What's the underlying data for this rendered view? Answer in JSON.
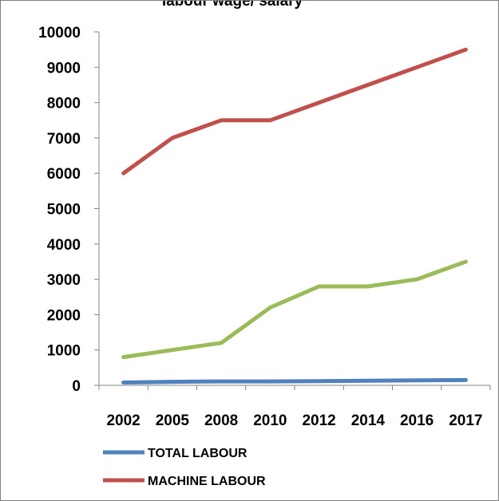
{
  "chart_data": {
    "type": "line",
    "title": "labour wage/ salary",
    "xlabel": "",
    "ylabel": "",
    "categories": [
      "2002",
      "2005",
      "2008",
      "2010",
      "2012",
      "2014",
      "2016",
      "2017"
    ],
    "ylim": [
      0,
      10000
    ],
    "yticks": [
      "0",
      "1000",
      "2000",
      "3000",
      "4000",
      "5000",
      "6000",
      "7000",
      "8000",
      "9000",
      "10000"
    ],
    "grid": false,
    "legend_position": "bottom",
    "series": [
      {
        "name": "TOTAL LABOUR",
        "color": "#4f81bd",
        "values": [
          80,
          100,
          110,
          110,
          120,
          130,
          140,
          150
        ]
      },
      {
        "name": "MACHINE LABOUR",
        "color": "#c0504d",
        "values": [
          6000,
          7000,
          7500,
          7500,
          8000,
          8500,
          9000,
          9500
        ]
      },
      {
        "name": "",
        "color": "#9bbb59",
        "values": [
          800,
          1000,
          1200,
          2200,
          2800,
          2800,
          3000,
          3500
        ]
      }
    ]
  }
}
